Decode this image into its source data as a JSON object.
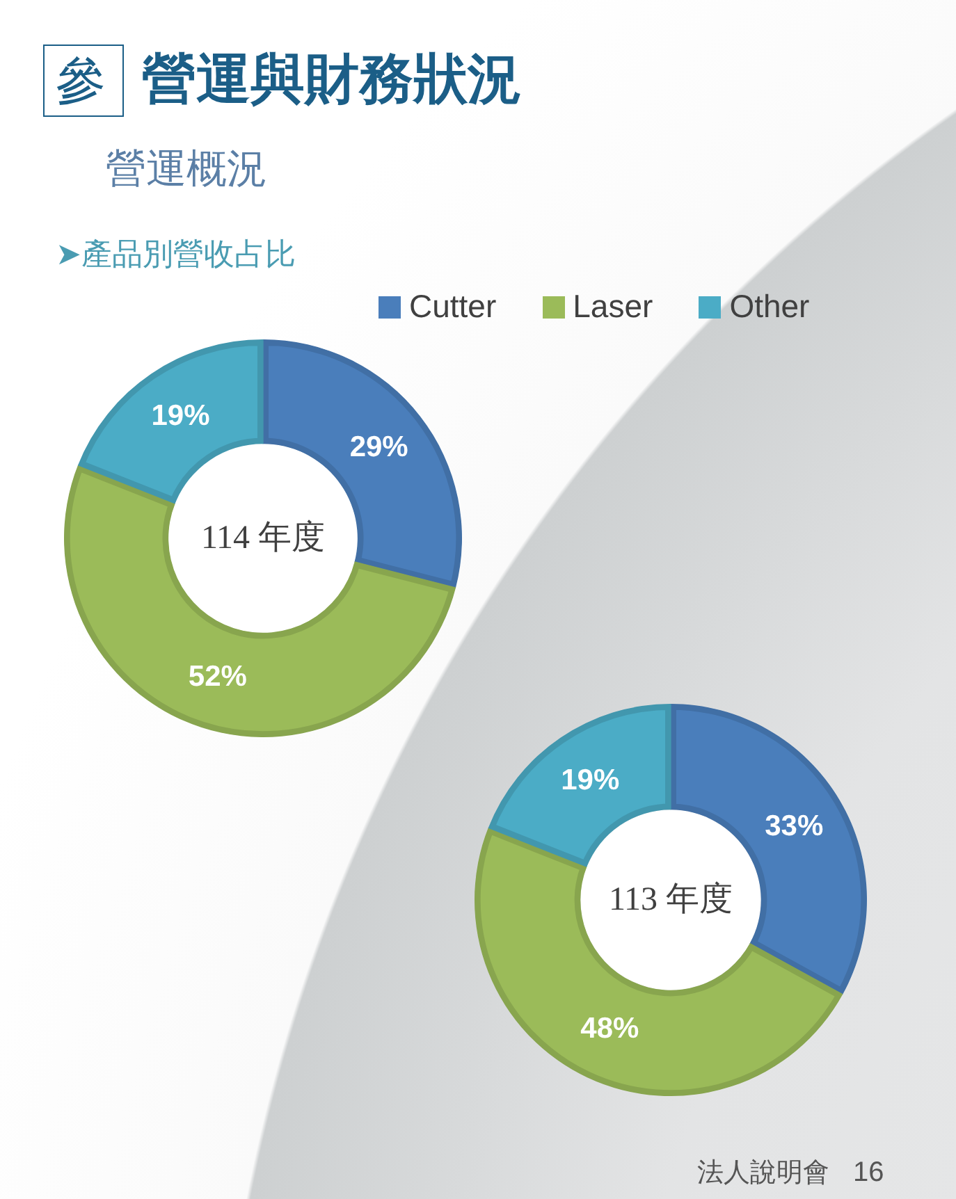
{
  "chart_data": [
    {
      "type": "donut",
      "title": "營運與財務狀況",
      "subtitle": "營運概況",
      "annotations": [
        "114 年度",
        "參",
        "➤產品別營收占比"
      ],
      "categories": [
        "Cutter",
        "Laser",
        "Other"
      ],
      "values": [
        29,
        52,
        19
      ],
      "colors": [
        "#4a7ebb",
        "#9bbb59",
        "#4bacc6"
      ],
      "value_labels": [
        "29%",
        "52%",
        "19%"
      ],
      "legend": "top"
    },
    {
      "type": "donut",
      "annotations": [
        "113 年度",
        "法人說明會",
        "16"
      ],
      "categories": [
        null,
        null,
        null
      ],
      "values": [
        33,
        48,
        19
      ],
      "colors": [
        "#4a7ebb",
        "#9bbb59",
        "#4bacc6"
      ],
      "value_labels": [
        "33%",
        "48%",
        "19%"
      ]
    }
  ]
}
